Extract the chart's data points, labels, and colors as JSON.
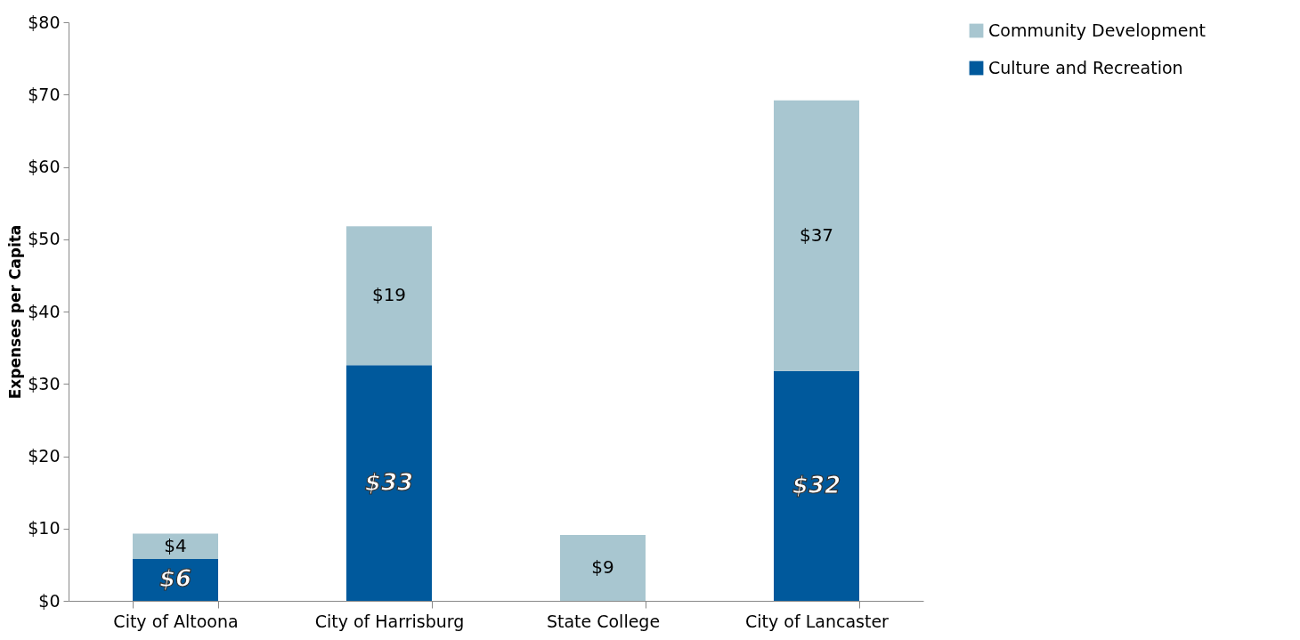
{
  "chart_data": {
    "type": "bar",
    "stacked": true,
    "ylabel": "Expenses per Capita",
    "categories": [
      "City of Altoona",
      "City of Harrisburg",
      "State College",
      "City of Lancaster"
    ],
    "series": [
      {
        "name": "Culture and Recreation",
        "color": "#00599c",
        "values": [
          5.8,
          32.6,
          0,
          31.8
        ],
        "value_labels": [
          "$6",
          "$33",
          null,
          "$32"
        ]
      },
      {
        "name": "Community Development",
        "color": "#a8c6d0",
        "values": [
          3.5,
          19.2,
          9.1,
          37.4
        ],
        "value_labels": [
          "$4",
          "$19",
          "$9",
          "$37"
        ]
      }
    ],
    "ylim": [
      0,
      80
    ],
    "yticks": [
      {
        "value": 0,
        "label": "$0"
      },
      {
        "value": 10,
        "label": "$10"
      },
      {
        "value": 20,
        "label": "$20"
      },
      {
        "value": 30,
        "label": "$30"
      },
      {
        "value": 40,
        "label": "$40"
      },
      {
        "value": 50,
        "label": "$50"
      },
      {
        "value": 60,
        "label": "$60"
      },
      {
        "value": 70,
        "label": "$70"
      },
      {
        "value": 80,
        "label": "$80"
      }
    ],
    "grid": false,
    "legend": "right"
  }
}
